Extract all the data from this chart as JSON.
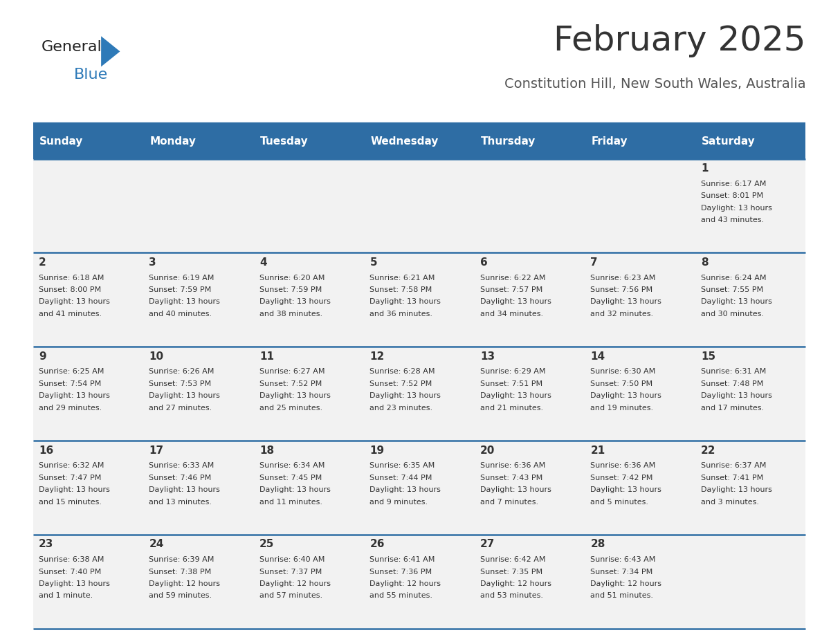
{
  "title": "February 2025",
  "subtitle": "Constitution Hill, New South Wales, Australia",
  "days_of_week": [
    "Sunday",
    "Monday",
    "Tuesday",
    "Wednesday",
    "Thursday",
    "Friday",
    "Saturday"
  ],
  "header_bg": "#2e6da4",
  "header_text": "#ffffff",
  "row_bg": "#f2f2f2",
  "divider_color": "#2e6da4",
  "text_color": "#333333",
  "title_color": "#333333",
  "subtitle_color": "#555555",
  "logo_general_color": "#222222",
  "logo_blue_color": "#2e7ab8",
  "calendar_data": [
    [
      {
        "day": "",
        "info": ""
      },
      {
        "day": "",
        "info": ""
      },
      {
        "day": "",
        "info": ""
      },
      {
        "day": "",
        "info": ""
      },
      {
        "day": "",
        "info": ""
      },
      {
        "day": "",
        "info": ""
      },
      {
        "day": "1",
        "info": "Sunrise: 6:17 AM\nSunset: 8:01 PM\nDaylight: 13 hours\nand 43 minutes."
      }
    ],
    [
      {
        "day": "2",
        "info": "Sunrise: 6:18 AM\nSunset: 8:00 PM\nDaylight: 13 hours\nand 41 minutes."
      },
      {
        "day": "3",
        "info": "Sunrise: 6:19 AM\nSunset: 7:59 PM\nDaylight: 13 hours\nand 40 minutes."
      },
      {
        "day": "4",
        "info": "Sunrise: 6:20 AM\nSunset: 7:59 PM\nDaylight: 13 hours\nand 38 minutes."
      },
      {
        "day": "5",
        "info": "Sunrise: 6:21 AM\nSunset: 7:58 PM\nDaylight: 13 hours\nand 36 minutes."
      },
      {
        "day": "6",
        "info": "Sunrise: 6:22 AM\nSunset: 7:57 PM\nDaylight: 13 hours\nand 34 minutes."
      },
      {
        "day": "7",
        "info": "Sunrise: 6:23 AM\nSunset: 7:56 PM\nDaylight: 13 hours\nand 32 minutes."
      },
      {
        "day": "8",
        "info": "Sunrise: 6:24 AM\nSunset: 7:55 PM\nDaylight: 13 hours\nand 30 minutes."
      }
    ],
    [
      {
        "day": "9",
        "info": "Sunrise: 6:25 AM\nSunset: 7:54 PM\nDaylight: 13 hours\nand 29 minutes."
      },
      {
        "day": "10",
        "info": "Sunrise: 6:26 AM\nSunset: 7:53 PM\nDaylight: 13 hours\nand 27 minutes."
      },
      {
        "day": "11",
        "info": "Sunrise: 6:27 AM\nSunset: 7:52 PM\nDaylight: 13 hours\nand 25 minutes."
      },
      {
        "day": "12",
        "info": "Sunrise: 6:28 AM\nSunset: 7:52 PM\nDaylight: 13 hours\nand 23 minutes."
      },
      {
        "day": "13",
        "info": "Sunrise: 6:29 AM\nSunset: 7:51 PM\nDaylight: 13 hours\nand 21 minutes."
      },
      {
        "day": "14",
        "info": "Sunrise: 6:30 AM\nSunset: 7:50 PM\nDaylight: 13 hours\nand 19 minutes."
      },
      {
        "day": "15",
        "info": "Sunrise: 6:31 AM\nSunset: 7:48 PM\nDaylight: 13 hours\nand 17 minutes."
      }
    ],
    [
      {
        "day": "16",
        "info": "Sunrise: 6:32 AM\nSunset: 7:47 PM\nDaylight: 13 hours\nand 15 minutes."
      },
      {
        "day": "17",
        "info": "Sunrise: 6:33 AM\nSunset: 7:46 PM\nDaylight: 13 hours\nand 13 minutes."
      },
      {
        "day": "18",
        "info": "Sunrise: 6:34 AM\nSunset: 7:45 PM\nDaylight: 13 hours\nand 11 minutes."
      },
      {
        "day": "19",
        "info": "Sunrise: 6:35 AM\nSunset: 7:44 PM\nDaylight: 13 hours\nand 9 minutes."
      },
      {
        "day": "20",
        "info": "Sunrise: 6:36 AM\nSunset: 7:43 PM\nDaylight: 13 hours\nand 7 minutes."
      },
      {
        "day": "21",
        "info": "Sunrise: 6:36 AM\nSunset: 7:42 PM\nDaylight: 13 hours\nand 5 minutes."
      },
      {
        "day": "22",
        "info": "Sunrise: 6:37 AM\nSunset: 7:41 PM\nDaylight: 13 hours\nand 3 minutes."
      }
    ],
    [
      {
        "day": "23",
        "info": "Sunrise: 6:38 AM\nSunset: 7:40 PM\nDaylight: 13 hours\nand 1 minute."
      },
      {
        "day": "24",
        "info": "Sunrise: 6:39 AM\nSunset: 7:38 PM\nDaylight: 12 hours\nand 59 minutes."
      },
      {
        "day": "25",
        "info": "Sunrise: 6:40 AM\nSunset: 7:37 PM\nDaylight: 12 hours\nand 57 minutes."
      },
      {
        "day": "26",
        "info": "Sunrise: 6:41 AM\nSunset: 7:36 PM\nDaylight: 12 hours\nand 55 minutes."
      },
      {
        "day": "27",
        "info": "Sunrise: 6:42 AM\nSunset: 7:35 PM\nDaylight: 12 hours\nand 53 minutes."
      },
      {
        "day": "28",
        "info": "Sunrise: 6:43 AM\nSunset: 7:34 PM\nDaylight: 12 hours\nand 51 minutes."
      },
      {
        "day": "",
        "info": ""
      }
    ]
  ]
}
